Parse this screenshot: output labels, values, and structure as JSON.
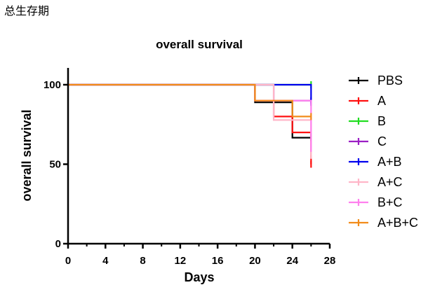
{
  "page": {
    "heading": "总生存期"
  },
  "chart_data": {
    "type": "line",
    "step": true,
    "title": "overall survival",
    "xlabel": "Days",
    "ylabel": "overall survival",
    "xlim": [
      0,
      28
    ],
    "ylim": [
      0,
      100
    ],
    "xticks": [
      0,
      4,
      8,
      12,
      16,
      20,
      24,
      28
    ],
    "yticks": [
      0,
      50,
      100
    ],
    "grid": false,
    "legend_position": "right",
    "series": [
      {
        "name": "PBS",
        "color": "#000000",
        "x": [
          0,
          20,
          24,
          26
        ],
        "y": [
          100,
          88.9,
          66.7,
          66.7
        ]
      },
      {
        "name": "A",
        "color": "#ff1010",
        "x": [
          0,
          20,
          22,
          24,
          26
        ],
        "y": [
          100,
          90,
          80,
          70,
          50
        ]
      },
      {
        "name": "B",
        "color": "#22dd22",
        "x": [
          0,
          26
        ],
        "y": [
          100,
          100
        ]
      },
      {
        "name": "C",
        "color": "#9b1fc4",
        "x": [
          0,
          22,
          26
        ],
        "y": [
          100,
          90,
          90
        ]
      },
      {
        "name": "A+B",
        "color": "#0000ee",
        "x": [
          0,
          26
        ],
        "y": [
          100,
          88.9
        ]
      },
      {
        "name": "A+C",
        "color": "#ffb6c8",
        "x": [
          0,
          22,
          26
        ],
        "y": [
          100,
          77.8,
          55.6
        ]
      },
      {
        "name": "B+C",
        "color": "#ff80ee",
        "x": [
          0,
          20,
          26
        ],
        "y": [
          100,
          90,
          60
        ]
      },
      {
        "name": "A+B+C",
        "color": "#f28c1a",
        "x": [
          0,
          20,
          24,
          26
        ],
        "y": [
          100,
          90,
          80,
          80
        ]
      }
    ]
  }
}
